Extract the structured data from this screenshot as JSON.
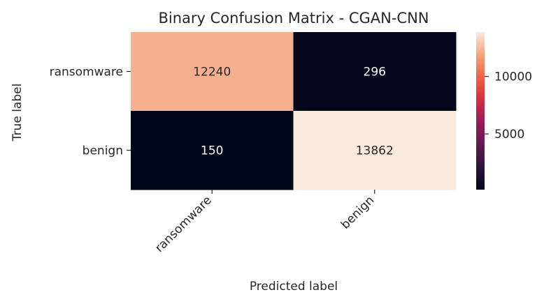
{
  "chart_data": {
    "type": "heatmap",
    "title": "Binary Confusion Matrix - CGAN-CNN",
    "xlabel": "Predicted label",
    "ylabel": "True label",
    "x_categories": [
      "ransomware",
      "benign"
    ],
    "y_categories": [
      "ransomware",
      "benign"
    ],
    "values": [
      [
        12240,
        296
      ],
      [
        150,
        13862
      ]
    ],
    "colorbar": {
      "vmin": 150,
      "vmax": 13862,
      "ticks": [
        5000,
        10000
      ],
      "tick_labels": [
        "5000",
        "10000"
      ],
      "colormap": "rocket"
    }
  }
}
